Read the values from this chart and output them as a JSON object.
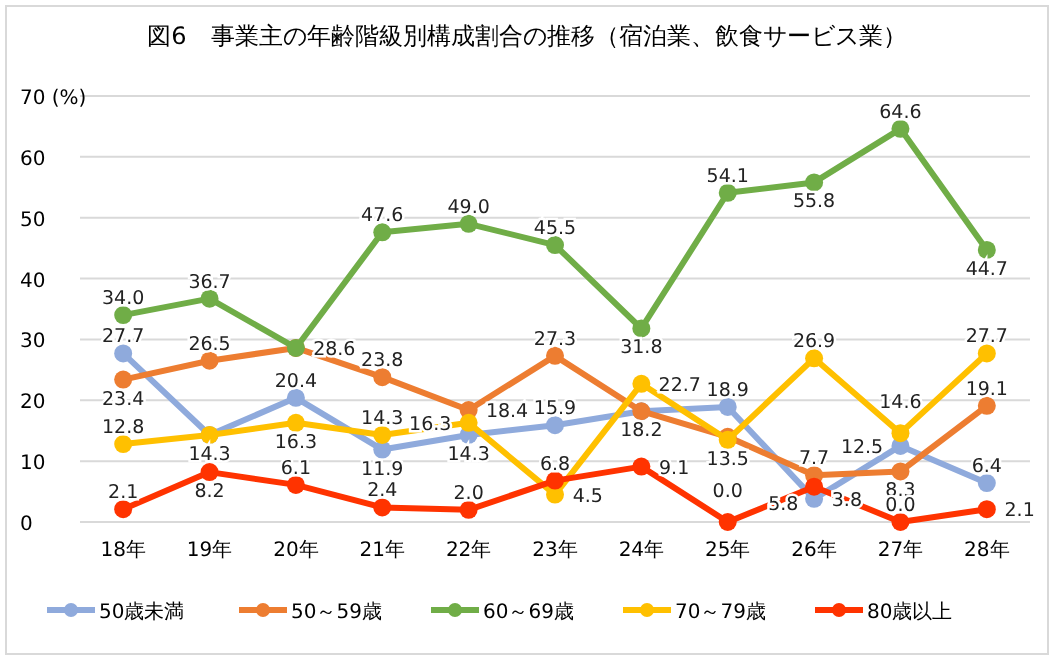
{
  "chart_data": {
    "type": "line",
    "title": "図6　事業主の年齢階級別構成割合の推移（宿泊業、飲食サービス業）",
    "categories": [
      "18年",
      "19年",
      "20年",
      "21年",
      "22年",
      "23年",
      "24年",
      "25年",
      "26年",
      "27年",
      "28年"
    ],
    "series": [
      {
        "name": "50歳未満",
        "color": "#8faadc",
        "values": [
          27.7,
          14.3,
          20.4,
          11.9,
          14.3,
          15.9,
          18.2,
          18.9,
          3.8,
          12.5,
          6.4
        ],
        "value_labels": [
          "27.7",
          "14.3",
          "20.4",
          "11.9",
          "14.3",
          "15.9",
          null,
          "18.9",
          "3.8",
          "12.5",
          "6.4"
        ]
      },
      {
        "name": "50～59歳",
        "color": "#ed7d31",
        "values": [
          23.4,
          26.5,
          28.6,
          23.8,
          18.4,
          27.3,
          18.2,
          14.0,
          7.7,
          8.3,
          19.1
        ],
        "value_labels": [
          "23.4",
          "26.5",
          null,
          "23.8",
          "18.4",
          "27.3",
          "18.2",
          null,
          "7.7",
          "8.3",
          "19.1"
        ]
      },
      {
        "name": "60～69歳",
        "color": "#70ad47",
        "values": [
          34.0,
          36.7,
          28.6,
          47.6,
          49.0,
          45.5,
          31.8,
          54.1,
          55.8,
          64.6,
          44.7
        ],
        "value_labels": [
          "34.0",
          "36.7",
          "28.6",
          "47.6",
          "49.0",
          "45.5",
          "31.8",
          "54.1",
          "55.8",
          "64.6",
          "44.7"
        ]
      },
      {
        "name": "70～79歳",
        "color": "#ffc000",
        "values": [
          12.8,
          14.3,
          16.3,
          14.3,
          16.3,
          4.5,
          22.7,
          13.5,
          26.9,
          14.6,
          27.7
        ],
        "value_labels": [
          "12.8",
          null,
          "16.3",
          "14.3",
          "16.3",
          "4.5",
          "22.7",
          "13.5",
          "26.9",
          "14.6",
          "27.7"
        ]
      },
      {
        "name": "80歳以上",
        "color": "#ff3300",
        "values": [
          2.1,
          8.2,
          6.1,
          2.4,
          2.0,
          6.8,
          9.1,
          0.0,
          5.8,
          0.0,
          2.1
        ],
        "value_labels": [
          "2.1",
          "8.2",
          "6.1",
          "2.4",
          "2.0",
          "6.8",
          "9.1",
          "0.0",
          "5.8",
          "0.0",
          "2.1"
        ]
      }
    ],
    "ylim": [
      0,
      70
    ],
    "yticks": [
      0,
      10,
      20,
      30,
      40,
      50,
      60,
      {
        "value": 70,
        "label": "70 (%)"
      }
    ],
    "grid": "y",
    "legend": "bottom",
    "marker": "circle",
    "line_style": "solid"
  }
}
